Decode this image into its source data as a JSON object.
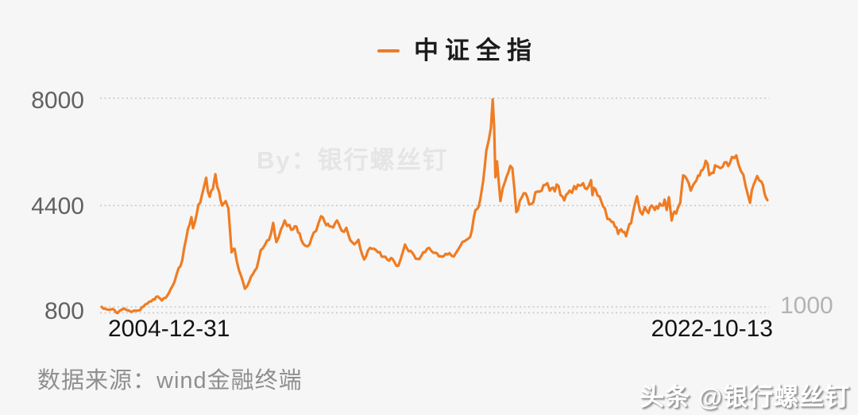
{
  "legend": {
    "label": "中证全指",
    "color": "#ef7c23"
  },
  "axis": {
    "y_ticks": [
      "8000",
      "4400",
      "800"
    ],
    "right_tick": "1000",
    "x_start_label": "2004-12-31",
    "x_end_label": "2022-10-13"
  },
  "footer": {
    "source": "数据来源：wind金融终端"
  },
  "watermarks": {
    "center": "By：银行螺丝钉",
    "corner": "头条 @银行螺丝钉"
  },
  "colors": {
    "background": "#f6f6f6",
    "line": "#ef7c23",
    "gridline": "#c6c6c6",
    "y_tick_text": "#616161",
    "x_label_text": "#121212",
    "right_tick_text": "#b3b3b3",
    "source_text": "#8f8f8f",
    "watermark_text": "#e5e5e5"
  },
  "chart_data": {
    "type": "line",
    "title": "中证全指",
    "xlabel": "",
    "ylabel": "",
    "x_range": [
      "2004-12-31",
      "2022-10-13"
    ],
    "ylim": [
      800,
      8000
    ],
    "y_axis_ticks": [
      8000,
      4400,
      800
    ],
    "right_axis_tick": 1000,
    "y_gridlines": [
      8000,
      4400,
      1000,
      800
    ],
    "grid_style": "dotted",
    "legend_position": "top-center",
    "series": [
      {
        "name": "中证全指",
        "color": "#ef7c23",
        "points": [
          [
            "2004-12-31",
            1000
          ],
          [
            "2005-02-01",
            940
          ],
          [
            "2005-03-15",
            900
          ],
          [
            "2005-04-15",
            930
          ],
          [
            "2005-06-03",
            790
          ],
          [
            "2005-07-10",
            900
          ],
          [
            "2005-08-10",
            945
          ],
          [
            "2005-09-20",
            880
          ],
          [
            "2005-10-25",
            840
          ],
          [
            "2005-12-01",
            870
          ],
          [
            "2006-01-10",
            890
          ],
          [
            "2006-03-01",
            1080
          ],
          [
            "2006-04-10",
            1180
          ],
          [
            "2006-05-15",
            1250
          ],
          [
            "2006-07-01",
            1350
          ],
          [
            "2006-08-10",
            1215
          ],
          [
            "2006-09-15",
            1300
          ],
          [
            "2006-10-20",
            1480
          ],
          [
            "2006-12-10",
            1830
          ],
          [
            "2007-01-20",
            2300
          ],
          [
            "2007-02-25",
            2560
          ],
          [
            "2007-04-05",
            3300
          ],
          [
            "2007-05-25",
            4010
          ],
          [
            "2007-06-10",
            3640
          ],
          [
            "2007-07-15",
            4100
          ],
          [
            "2007-08-20",
            4500
          ],
          [
            "2007-09-20",
            4950
          ],
          [
            "2007-10-16",
            5330
          ],
          [
            "2007-11-20",
            4690
          ],
          [
            "2007-12-20",
            4950
          ],
          [
            "2008-01-14",
            5450
          ],
          [
            "2008-02-20",
            4850
          ],
          [
            "2008-03-20",
            4400
          ],
          [
            "2008-04-24",
            4550
          ],
          [
            "2008-05-20",
            4300
          ],
          [
            "2008-06-20",
            2830
          ],
          [
            "2008-07-20",
            2950
          ],
          [
            "2008-09-01",
            2220
          ],
          [
            "2008-10-28",
            1610
          ],
          [
            "2008-12-10",
            1850
          ],
          [
            "2009-01-15",
            2100
          ],
          [
            "2009-02-20",
            2300
          ],
          [
            "2009-04-01",
            2900
          ],
          [
            "2009-05-15",
            3100
          ],
          [
            "2009-06-20",
            3250
          ],
          [
            "2009-07-31",
            3820
          ],
          [
            "2009-08-31",
            3170
          ],
          [
            "2009-10-15",
            3600
          ],
          [
            "2009-11-20",
            3900
          ],
          [
            "2010-01-05",
            3750
          ],
          [
            "2010-02-10",
            3600
          ],
          [
            "2010-03-15",
            3700
          ],
          [
            "2010-05-01",
            3250
          ],
          [
            "2010-07-01",
            3030
          ],
          [
            "2010-09-01",
            3500
          ],
          [
            "2010-10-15",
            3800
          ],
          [
            "2010-11-10",
            4040
          ],
          [
            "2010-12-15",
            3850
          ],
          [
            "2011-02-01",
            3700
          ],
          [
            "2011-04-15",
            3900
          ],
          [
            "2011-06-01",
            3550
          ],
          [
            "2011-07-15",
            3650
          ],
          [
            "2011-09-30",
            3100
          ],
          [
            "2011-11-10",
            3250
          ],
          [
            "2012-01-05",
            2590
          ],
          [
            "2012-03-01",
            2980
          ],
          [
            "2012-05-01",
            2900
          ],
          [
            "2012-07-10",
            2680
          ],
          [
            "2012-09-05",
            2550
          ],
          [
            "2012-10-10",
            2600
          ],
          [
            "2012-12-03",
            2380
          ],
          [
            "2013-02-06",
            3090
          ],
          [
            "2013-04-01",
            2880
          ],
          [
            "2013-06-25",
            2600
          ],
          [
            "2013-09-10",
            2950
          ],
          [
            "2013-10-20",
            2880
          ],
          [
            "2013-12-01",
            2820
          ],
          [
            "2014-01-20",
            2700
          ],
          [
            "2014-03-10",
            2780
          ],
          [
            "2014-05-05",
            2720
          ],
          [
            "2014-06-20",
            2820
          ],
          [
            "2014-08-01",
            3050
          ],
          [
            "2014-09-10",
            3200
          ],
          [
            "2014-10-20",
            3300
          ],
          [
            "2014-11-20",
            3560
          ],
          [
            "2014-12-10",
            4010
          ],
          [
            "2015-01-10",
            4280
          ],
          [
            "2015-02-10",
            4600
          ],
          [
            "2015-03-10",
            5200
          ],
          [
            "2015-04-10",
            6230
          ],
          [
            "2015-05-05",
            6600
          ],
          [
            "2015-05-25",
            7000
          ],
          [
            "2015-06-12",
            7960
          ],
          [
            "2015-06-26",
            7030
          ],
          [
            "2015-07-08",
            5350
          ],
          [
            "2015-07-24",
            5880
          ],
          [
            "2015-08-26",
            4550
          ],
          [
            "2015-10-10",
            5200
          ],
          [
            "2015-11-10",
            5500
          ],
          [
            "2015-12-20",
            5650
          ],
          [
            "2016-01-28",
            4180
          ],
          [
            "2016-03-01",
            4550
          ],
          [
            "2016-04-10",
            4810
          ],
          [
            "2016-06-01",
            4440
          ],
          [
            "2016-08-01",
            4840
          ],
          [
            "2016-10-01",
            4900
          ],
          [
            "2016-11-25",
            5150
          ],
          [
            "2016-12-20",
            4900
          ],
          [
            "2017-01-20",
            5000
          ],
          [
            "2017-03-15",
            5050
          ],
          [
            "2017-05-10",
            4570
          ],
          [
            "2017-07-01",
            4900
          ],
          [
            "2017-08-15",
            5050
          ],
          [
            "2017-09-20",
            5100
          ],
          [
            "2017-11-10",
            5150
          ],
          [
            "2017-12-15",
            4950
          ],
          [
            "2018-01-26",
            5250
          ],
          [
            "2018-02-09",
            4750
          ],
          [
            "2018-03-10",
            4950
          ],
          [
            "2018-04-20",
            4700
          ],
          [
            "2018-06-10",
            4300
          ],
          [
            "2018-07-05",
            3950
          ],
          [
            "2018-08-15",
            3850
          ],
          [
            "2018-09-15",
            3700
          ],
          [
            "2018-10-18",
            3450
          ],
          [
            "2018-11-15",
            3600
          ],
          [
            "2019-01-03",
            3370
          ],
          [
            "2019-02-20",
            3800
          ],
          [
            "2019-04-19",
            4710
          ],
          [
            "2019-05-20",
            4200
          ],
          [
            "2019-06-10",
            4100
          ],
          [
            "2019-07-05",
            4350
          ],
          [
            "2019-08-09",
            4150
          ],
          [
            "2019-09-10",
            4400
          ],
          [
            "2019-10-10",
            4250
          ],
          [
            "2019-11-10",
            4300
          ],
          [
            "2019-12-15",
            4400
          ],
          [
            "2020-01-14",
            4600
          ],
          [
            "2020-02-03",
            4250
          ],
          [
            "2020-02-25",
            4680
          ],
          [
            "2020-03-23",
            3900
          ],
          [
            "2020-04-20",
            4200
          ],
          [
            "2020-05-20",
            4300
          ],
          [
            "2020-06-15",
            4500
          ],
          [
            "2020-07-13",
            5410
          ],
          [
            "2020-08-15",
            5300
          ],
          [
            "2020-09-25",
            4900
          ],
          [
            "2020-10-20",
            5100
          ],
          [
            "2020-11-20",
            5250
          ],
          [
            "2020-12-20",
            5400
          ],
          [
            "2021-01-20",
            5600
          ],
          [
            "2021-02-18",
            5900
          ],
          [
            "2021-03-25",
            5420
          ],
          [
            "2021-04-20",
            5500
          ],
          [
            "2021-05-20",
            5750
          ],
          [
            "2021-06-20",
            5700
          ],
          [
            "2021-08-01",
            5690
          ],
          [
            "2021-09-10",
            5850
          ],
          [
            "2021-10-10",
            5800
          ],
          [
            "2021-11-01",
            6030
          ],
          [
            "2021-12-13",
            6080
          ],
          [
            "2022-01-05",
            5770
          ],
          [
            "2022-02-20",
            5430
          ],
          [
            "2022-03-15",
            5050
          ],
          [
            "2022-04-26",
            4490
          ],
          [
            "2022-06-01",
            5100
          ],
          [
            "2022-07-05",
            5390
          ],
          [
            "2022-08-15",
            5200
          ],
          [
            "2022-09-15",
            4800
          ],
          [
            "2022-10-13",
            4580
          ]
        ]
      }
    ]
  }
}
